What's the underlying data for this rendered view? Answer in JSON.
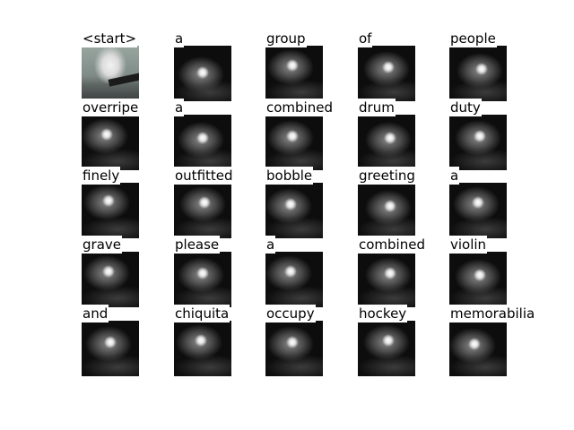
{
  "words": [
    [
      "<start>",
      "a",
      "group",
      "of",
      "people"
    ],
    [
      "overripe",
      "a",
      "combined",
      "drum",
      "duty"
    ],
    [
      "finely",
      "outfitted",
      "bobble",
      "greeting",
      "a"
    ],
    [
      "grave",
      "please",
      "a",
      "combined",
      "violin"
    ],
    [
      "and",
      "chiquita",
      "occupy",
      "hockey",
      "memorabilia"
    ]
  ]
}
